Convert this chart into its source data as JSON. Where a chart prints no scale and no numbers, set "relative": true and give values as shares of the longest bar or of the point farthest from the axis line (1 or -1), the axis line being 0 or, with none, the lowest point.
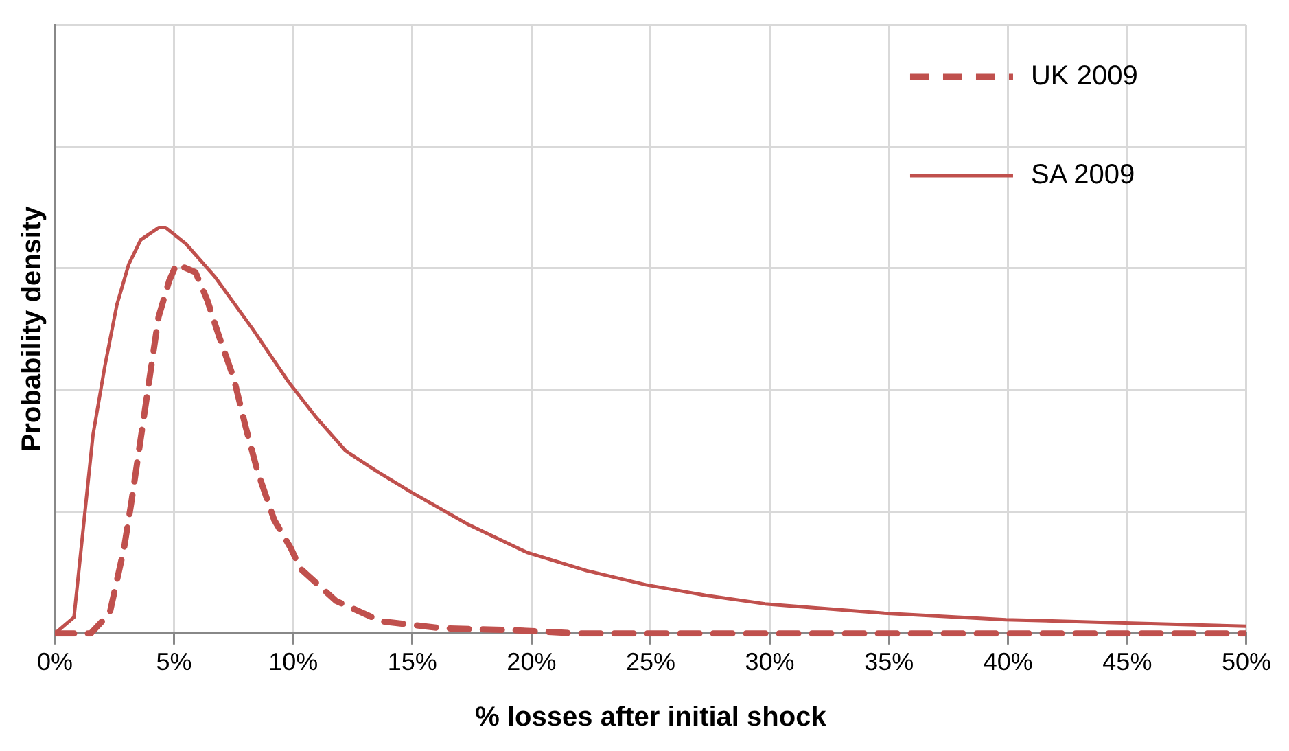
{
  "chart_data": {
    "type": "line",
    "xlabel": "% losses after initial shock",
    "ylabel": "Probability density",
    "relative": true,
    "grid": true,
    "legend": "top right",
    "marker": "none",
    "xlim": [
      0,
      50
    ],
    "xticks": [
      {
        "value": 0,
        "label": "0%"
      },
      {
        "value": 5,
        "label": "5%"
      },
      {
        "value": 10,
        "label": "10%"
      },
      {
        "value": 15,
        "label": "15%"
      },
      {
        "value": 20,
        "label": "20%"
      },
      {
        "value": 25,
        "label": "25%"
      },
      {
        "value": 30,
        "label": "30%"
      },
      {
        "value": 35,
        "label": "35%"
      },
      {
        "value": 40,
        "label": "40%"
      },
      {
        "value": 45,
        "label": "45%"
      },
      {
        "value": 50,
        "label": "50%"
      }
    ],
    "series": [
      {
        "name": "UK 2009",
        "color": "#c0504d",
        "line_style": "dashed",
        "x": [
          0,
          1.5,
          2.3,
          2.9,
          3.2,
          3.5,
          3.8,
          4.1,
          4.35,
          4.8,
          5.1,
          5.9,
          6.4,
          6.9,
          7.5,
          8,
          8.5,
          9.2,
          9.9,
          10.3,
          11.8,
          13.7,
          16.2,
          19.3,
          22,
          50
        ],
        "values": [
          0,
          0,
          0.05,
          0.21,
          0.32,
          0.44,
          0.56,
          0.68,
          0.78,
          0.87,
          0.91,
          0.89,
          0.82,
          0.73,
          0.63,
          0.51,
          0.4,
          0.28,
          0.21,
          0.16,
          0.08,
          0.03,
          0.013,
          0.008,
          0,
          0
        ]
      },
      {
        "name": "SA 2009",
        "color": "#c0504d",
        "line_style": "solid",
        "x": [
          0,
          0.8,
          1.6,
          2.1,
          2.6,
          3.1,
          3.6,
          4.35,
          4.65,
          5.5,
          6.7,
          8.3,
          9.8,
          11,
          12.2,
          13.5,
          14.9,
          17.3,
          19.8,
          22.3,
          24.8,
          27.3,
          29.8,
          34.8,
          39.9,
          44.9,
          50
        ],
        "values": [
          0,
          0.04,
          0.49,
          0.66,
          0.81,
          0.91,
          0.97,
          1,
          1,
          0.96,
          0.88,
          0.75,
          0.62,
          0.53,
          0.45,
          0.4,
          0.35,
          0.27,
          0.2,
          0.155,
          0.12,
          0.094,
          0.073,
          0.05,
          0.034,
          0.026,
          0.018
        ]
      }
    ]
  }
}
